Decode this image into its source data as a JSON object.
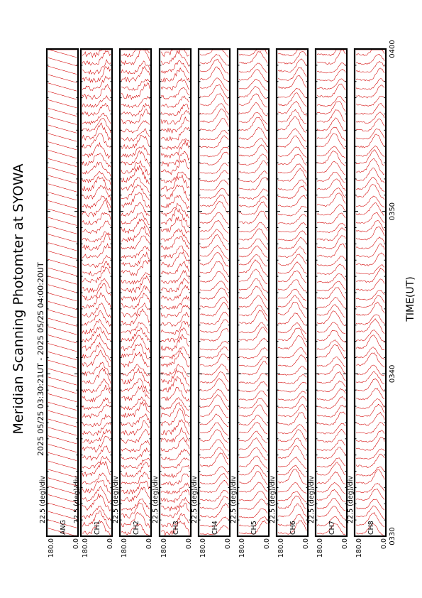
{
  "title": "Meridian Scanning Photomter at SYOWA",
  "time_range": "2025 05/25 03:30:21UT - 2025 05/25 04:00:20UT",
  "chart_data": {
    "type": "line",
    "xlabel": "TIME(UT)",
    "x_ticks": [
      "0330",
      "0340",
      "0350",
      "0400"
    ],
    "xlim": [
      "0330",
      "0400"
    ],
    "ylim": [
      0.0,
      180.0
    ],
    "y_tick_labels": [
      "180.0",
      "0.0"
    ],
    "scale_label": "22.5 (deg)/div",
    "panels": [
      {
        "channel": "ANG",
        "label": "ANG"
      },
      {
        "channel": "CH1",
        "label": "CH1"
      },
      {
        "channel": "CH2",
        "label": "CH2"
      },
      {
        "channel": "CH3",
        "label": "CH3"
      },
      {
        "channel": "CH4",
        "label": "CH4"
      },
      {
        "channel": "CH5",
        "label": "CH5"
      },
      {
        "channel": "CH6",
        "label": "CH6"
      },
      {
        "channel": "CH7",
        "label": "CH7"
      },
      {
        "channel": "CH8",
        "label": "CH8"
      }
    ],
    "series_color": "#d40000",
    "grid": false
  }
}
